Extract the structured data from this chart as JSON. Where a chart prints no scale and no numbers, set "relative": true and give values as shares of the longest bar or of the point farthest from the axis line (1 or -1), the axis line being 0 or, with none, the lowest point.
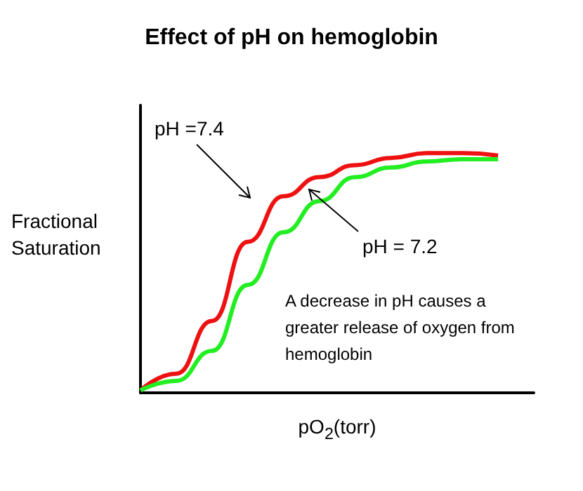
{
  "chart_data": {
    "type": "line",
    "title": "Effect of pH on hemoglobin",
    "xlabel": "pO$_{2}$(torr)",
    "ylabel": "Fractional Saturation",
    "relative": true,
    "marker": "none",
    "categories": [
      null,
      null,
      null,
      null,
      null,
      null,
      null,
      null,
      null,
      null,
      null,
      null
    ],
    "series": [
      {
        "color": "#ee1111",
        "values": [
          0.01,
          0.08,
          0.3,
          0.63,
          0.82,
          0.9,
          0.95,
          0.98,
          1,
          1,
          0.99,
          null
        ]
      },
      {
        "color": "#22ee22",
        "values": [
          0.01,
          0.05,
          0.175,
          0.45,
          0.67,
          0.8,
          0.9,
          0.94,
          0.965,
          0.975,
          0.975,
          null
        ]
      }
    ],
    "annotations": [
      "pH =7.4",
      "pH = 7.2",
      "A decrease in pH causes a greater release of oxygen from hemoglobin"
    ]
  }
}
